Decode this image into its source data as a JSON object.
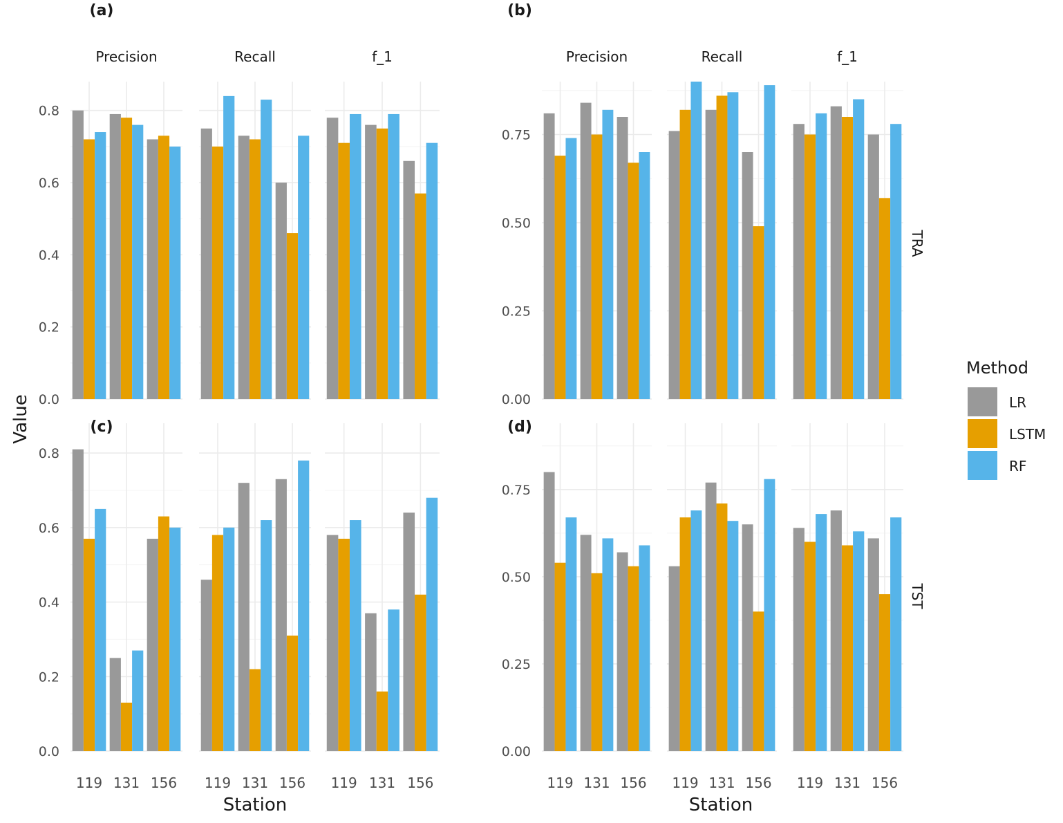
{
  "y_axis_title": "Value",
  "x_axis_title": "Station",
  "legend": {
    "title": "Method",
    "items": [
      {
        "label": "LR",
        "color": "#999999"
      },
      {
        "label": "LSTM",
        "color": "#E69F00"
      },
      {
        "label": "RF",
        "color": "#56B4E9"
      }
    ]
  },
  "row_strips": [
    "TRA",
    "TST"
  ],
  "chart_data": [
    {
      "type": "bar",
      "panel_label": "(a)",
      "row": "TRA",
      "categories": [
        "119",
        "131",
        "156"
      ],
      "ylim": [
        0,
        0.88
      ],
      "yticks": [
        "0.0",
        "0.2",
        "0.4",
        "0.6",
        "0.8"
      ],
      "facets": [
        {
          "title": "Precision",
          "series": [
            {
              "name": "LR",
              "values": [
                0.8,
                0.79,
                0.72
              ]
            },
            {
              "name": "LSTM",
              "values": [
                0.72,
                0.78,
                0.73
              ]
            },
            {
              "name": "RF",
              "values": [
                0.74,
                0.76,
                0.7
              ]
            }
          ]
        },
        {
          "title": "Recall",
          "series": [
            {
              "name": "LR",
              "values": [
                0.75,
                0.73,
                0.6
              ]
            },
            {
              "name": "LSTM",
              "values": [
                0.7,
                0.72,
                0.46
              ]
            },
            {
              "name": "RF",
              "values": [
                0.84,
                0.83,
                0.73
              ]
            }
          ]
        },
        {
          "title": "f_1",
          "series": [
            {
              "name": "LR",
              "values": [
                0.78,
                0.76,
                0.66
              ]
            },
            {
              "name": "LSTM",
              "values": [
                0.71,
                0.75,
                0.57
              ]
            },
            {
              "name": "RF",
              "values": [
                0.79,
                0.79,
                0.71
              ]
            }
          ]
        }
      ]
    },
    {
      "type": "bar",
      "panel_label": "(b)",
      "row": "TRA",
      "categories": [
        "119",
        "131",
        "156"
      ],
      "ylim": [
        0,
        0.9
      ],
      "yticks": [
        "0.00",
        "0.25",
        "0.50",
        "0.75"
      ],
      "facets": [
        {
          "title": "Precision",
          "series": [
            {
              "name": "LR",
              "values": [
                0.81,
                0.84,
                0.8
              ]
            },
            {
              "name": "LSTM",
              "values": [
                0.69,
                0.75,
                0.67
              ]
            },
            {
              "name": "RF",
              "values": [
                0.74,
                0.82,
                0.7
              ]
            }
          ]
        },
        {
          "title": "Recall",
          "series": [
            {
              "name": "LR",
              "values": [
                0.76,
                0.82,
                0.7
              ]
            },
            {
              "name": "LSTM",
              "values": [
                0.82,
                0.86,
                0.49
              ]
            },
            {
              "name": "RF",
              "values": [
                0.9,
                0.87,
                0.89
              ]
            }
          ]
        },
        {
          "title": "f_1",
          "series": [
            {
              "name": "LR",
              "values": [
                0.78,
                0.83,
                0.75
              ]
            },
            {
              "name": "LSTM",
              "values": [
                0.75,
                0.8,
                0.57
              ]
            },
            {
              "name": "RF",
              "values": [
                0.81,
                0.85,
                0.78
              ]
            }
          ]
        }
      ]
    },
    {
      "type": "bar",
      "panel_label": "(c)",
      "row": "TST",
      "categories": [
        "119",
        "131",
        "156"
      ],
      "ylim": [
        0,
        0.88
      ],
      "yticks": [
        "0.0",
        "0.2",
        "0.4",
        "0.6",
        "0.8"
      ],
      "facets": [
        {
          "title": "Precision",
          "series": [
            {
              "name": "LR",
              "values": [
                0.81,
                0.25,
                0.57
              ]
            },
            {
              "name": "LSTM",
              "values": [
                0.57,
                0.13,
                0.63
              ]
            },
            {
              "name": "RF",
              "values": [
                0.65,
                0.27,
                0.6
              ]
            }
          ]
        },
        {
          "title": "Recall",
          "series": [
            {
              "name": "LR",
              "values": [
                0.46,
                0.72,
                0.73
              ]
            },
            {
              "name": "LSTM",
              "values": [
                0.58,
                0.22,
                0.31
              ]
            },
            {
              "name": "RF",
              "values": [
                0.6,
                0.62,
                0.78
              ]
            }
          ]
        },
        {
          "title": "f_1",
          "series": [
            {
              "name": "LR",
              "values": [
                0.58,
                0.37,
                0.64
              ]
            },
            {
              "name": "LSTM",
              "values": [
                0.57,
                0.16,
                0.42
              ]
            },
            {
              "name": "RF",
              "values": [
                0.62,
                0.38,
                0.68
              ]
            }
          ]
        }
      ]
    },
    {
      "type": "bar",
      "panel_label": "(d)",
      "row": "TST",
      "categories": [
        "119",
        "131",
        "156"
      ],
      "ylim": [
        0,
        0.94
      ],
      "yticks": [
        "0.00",
        "0.25",
        "0.50",
        "0.75"
      ],
      "facets": [
        {
          "title": "Precision",
          "series": [
            {
              "name": "LR",
              "values": [
                0.8,
                0.62,
                0.57
              ]
            },
            {
              "name": "LSTM",
              "values": [
                0.54,
                0.51,
                0.53
              ]
            },
            {
              "name": "RF",
              "values": [
                0.67,
                0.61,
                0.59
              ]
            }
          ]
        },
        {
          "title": "Recall",
          "series": [
            {
              "name": "LR",
              "values": [
                0.53,
                0.77,
                0.65
              ]
            },
            {
              "name": "LSTM",
              "values": [
                0.67,
                0.71,
                0.4
              ]
            },
            {
              "name": "RF",
              "values": [
                0.69,
                0.66,
                0.78
              ]
            }
          ]
        },
        {
          "title": "f_1",
          "series": [
            {
              "name": "LR",
              "values": [
                0.64,
                0.69,
                0.61
              ]
            },
            {
              "name": "LSTM",
              "values": [
                0.6,
                0.59,
                0.45
              ]
            },
            {
              "name": "RF",
              "values": [
                0.68,
                0.63,
                0.67
              ]
            }
          ]
        }
      ]
    }
  ]
}
